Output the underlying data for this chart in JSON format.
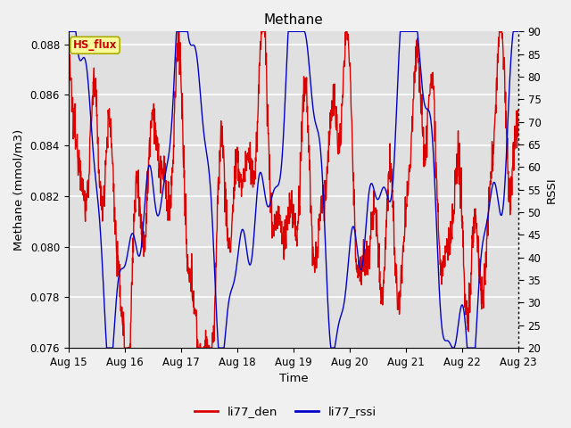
{
  "title": "Methane",
  "ylabel_left": "Methane (mmol/m3)",
  "ylabel_right": "RSSI",
  "xlabel": "Time",
  "ylim_left": [
    0.076,
    0.0885
  ],
  "ylim_right": [
    20,
    90
  ],
  "yticks_left": [
    0.076,
    0.078,
    0.08,
    0.082,
    0.084,
    0.086,
    0.088
  ],
  "yticks_right": [
    20,
    25,
    30,
    35,
    40,
    45,
    50,
    55,
    60,
    65,
    70,
    75,
    80,
    85,
    90
  ],
  "xtick_labels": [
    "Aug 15",
    "Aug 16",
    "Aug 17",
    "Aug 18",
    "Aug 19",
    "Aug 20",
    "Aug 21",
    "Aug 22",
    "Aug 23"
  ],
  "color_red": "#dd0000",
  "color_blue": "#0000cc",
  "legend_label_red": "li77_den",
  "legend_label_blue": "li77_rssi",
  "textbox_label": "HS_flux",
  "textbox_facecolor": "#ffff99",
  "textbox_edgecolor": "#aaaa00",
  "textbox_textcolor": "#cc0000",
  "bg_color": "#e0e0e0",
  "grid_color": "#ffffff",
  "fig_bg": "#f0f0f0"
}
